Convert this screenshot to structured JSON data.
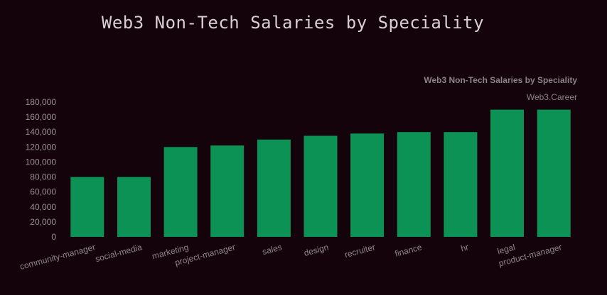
{
  "page_title": "Web3 Non-Tech Salaries by Speciality",
  "colors": {
    "background": "#14030a",
    "bar": "#0c9254"
  },
  "chart_data": {
    "type": "bar",
    "title": "Web3 Non-Tech Salaries by Speciality",
    "source": "Web3.Career",
    "categories": [
      "community-manager",
      "social-media",
      "marketing",
      "project-manager",
      "sales",
      "design",
      "recruiter",
      "finance",
      "hr",
      "legal",
      "product-manager"
    ],
    "values": [
      80000,
      80000,
      120000,
      122000,
      130000,
      135000,
      138000,
      140000,
      140000,
      170000,
      170000
    ],
    "yticks": [
      "0",
      "20,000",
      "40,000",
      "60,000",
      "80,000",
      "100,000",
      "120,000",
      "140,000",
      "160,000",
      "180,000"
    ],
    "ylim": [
      0,
      180000
    ],
    "xlabel": "",
    "ylabel": "",
    "grid": false,
    "legend": "none"
  }
}
